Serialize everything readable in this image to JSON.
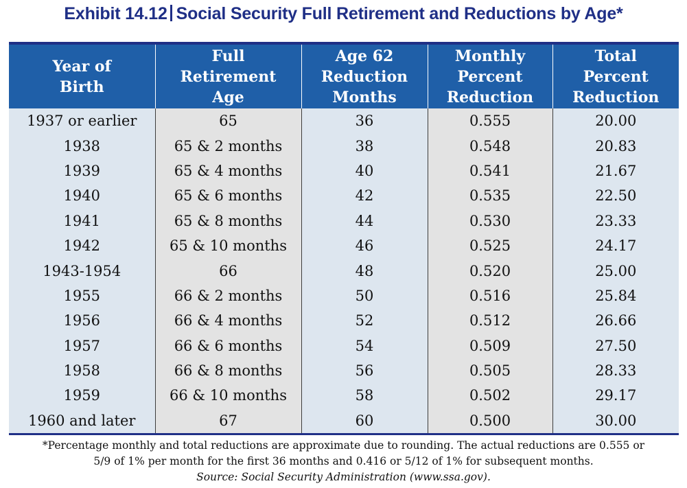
{
  "title": {
    "exhibit": "Exhibit 14.12",
    "separator": "|",
    "text": "Social Security Full Retirement and Reductions by Age*"
  },
  "table": {
    "headers": [
      [
        "Year of",
        "Birth"
      ],
      [
        "Full",
        "Retirement",
        "Age"
      ],
      [
        "Age 62",
        "Reduction",
        "Months"
      ],
      [
        "Monthly",
        "Percent",
        "Reduction"
      ],
      [
        "Total",
        "Percent",
        "Reduction"
      ]
    ],
    "rows": [
      [
        "1937 or earlier",
        "65",
        "36",
        "0.555",
        "20.00"
      ],
      [
        "1938",
        "65 & 2 months",
        "38",
        "0.548",
        "20.83"
      ],
      [
        "1939",
        "65 & 4 months",
        "40",
        "0.541",
        "21.67"
      ],
      [
        "1940",
        "65 & 6 months",
        "42",
        "0.535",
        "22.50"
      ],
      [
        "1941",
        "65 & 8 months",
        "44",
        "0.530",
        "23.33"
      ],
      [
        "1942",
        "65 & 10 months",
        "46",
        "0.525",
        "24.17"
      ],
      [
        "1943-1954",
        "66",
        "48",
        "0.520",
        "25.00"
      ],
      [
        "1955",
        "66 & 2 months",
        "50",
        "0.516",
        "25.84"
      ],
      [
        "1956",
        "66 & 4 months",
        "52",
        "0.512",
        "26.66"
      ],
      [
        "1957",
        "66 & 6 months",
        "54",
        "0.509",
        "27.50"
      ],
      [
        "1958",
        "66 & 8 months",
        "56",
        "0.505",
        "28.33"
      ],
      [
        "1959",
        "66 & 10 months",
        "58",
        "0.502",
        "29.17"
      ],
      [
        "1960 and later",
        "67",
        "60",
        "0.500",
        "30.00"
      ]
    ]
  },
  "footnote": {
    "line1": "*Percentage monthly and total reductions are approximate due to rounding. The actual reductions are 0.555 or",
    "line2": "5/9 of 1% per month for the first 36 months and 0.416 or 5/12 of 1% for subsequent months.",
    "source": "Source: Social Security Administration (www.ssa.gov)."
  },
  "colors": {
    "title": "#1f2f86",
    "header_bg": "#1f5fa8",
    "cell_blue": "#dde6ef",
    "cell_gray": "#e3e3e3"
  }
}
